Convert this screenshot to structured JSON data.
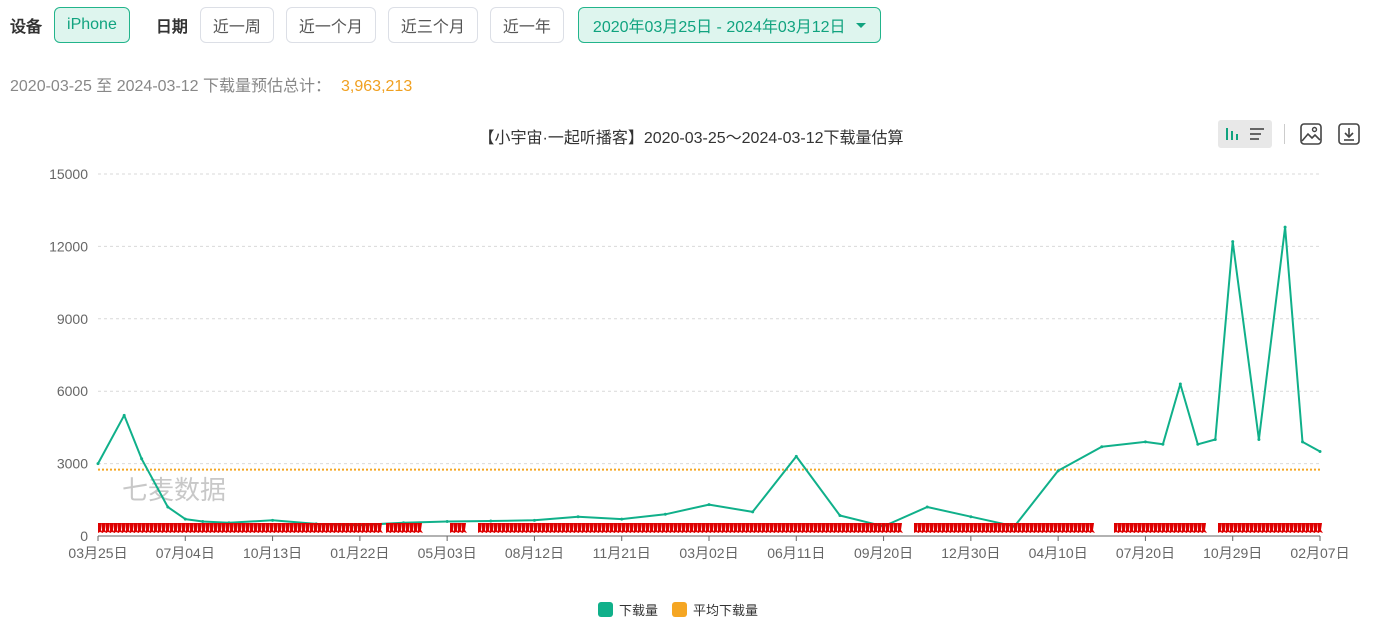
{
  "filters": {
    "device_label": "设备",
    "device_value": "iPhone",
    "date_label": "日期",
    "presets": [
      "近一周",
      "近一个月",
      "近三个月",
      "近一年"
    ],
    "date_range": "2020年03月25日 - 2024年03月12日"
  },
  "summary": {
    "text": "2020-03-25 至 2024-03-12 下载量预估总计：",
    "total": "3,963,213"
  },
  "watermark": "七麦数据",
  "toolbox": {
    "icons": [
      "bar-chart-icon",
      "list-icon",
      "image-icon",
      "download-icon"
    ]
  },
  "colors": {
    "accent": "#10a37f",
    "series_downloads": "#10b08a",
    "series_average": "#f5a623",
    "markers": "#dd0000",
    "total": "#f0a020"
  },
  "chart_data": {
    "type": "line",
    "title": "【小宇宙·一起听播客】2020-03-25～2024-03-12下载量估算",
    "xlabel": "",
    "ylabel": "",
    "x_ticks": [
      "03月25日",
      "07月04日",
      "10月13日",
      "01月22日",
      "05月03日",
      "08月12日",
      "11月21日",
      "03月02日",
      "06月11日",
      "09月20日",
      "12月30日",
      "04月10日",
      "07月20日",
      "10月29日",
      "02月07日"
    ],
    "y_ticks": [
      0,
      3000,
      6000,
      9000,
      12000,
      15000
    ],
    "ylim": [
      0,
      15000
    ],
    "grid": true,
    "legend_position": "bottom-center",
    "series": [
      {
        "name": "下载量",
        "x": [
          0.0,
          0.3,
          0.5,
          0.8,
          1.0,
          1.2,
          1.5,
          2.0,
          2.5,
          3.0,
          3.5,
          4.0,
          4.5,
          5.0,
          5.5,
          6.0,
          6.5,
          7.0,
          7.5,
          8.0,
          8.5,
          9.0,
          9.5,
          10.0,
          10.5,
          11.0,
          11.5,
          12.0,
          12.2,
          12.4,
          12.6,
          12.8,
          13.0,
          13.3,
          13.6,
          13.8,
          14.0
        ],
        "values": [
          3000,
          5000,
          3200,
          1200,
          700,
          600,
          550,
          650,
          500,
          450,
          550,
          600,
          620,
          650,
          800,
          700,
          900,
          1300,
          1000,
          3300,
          850,
          400,
          1200,
          800,
          400,
          2700,
          3700,
          3900,
          3800,
          6300,
          3800,
          4000,
          12200,
          4000,
          12800,
          3900,
          3500
        ]
      },
      {
        "name": "平均下载量",
        "x": [
          0,
          14
        ],
        "values": [
          2750,
          2750
        ]
      }
    ]
  }
}
